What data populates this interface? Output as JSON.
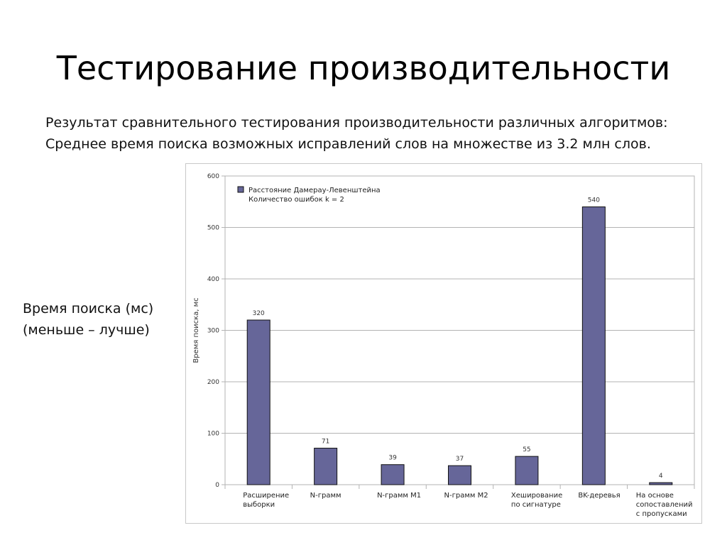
{
  "slide": {
    "title": "Тестирование производительности",
    "subtitle_line1": "Результат сравнительного тестирования производительности различных алгоритмов:",
    "subtitle_line2": "Среднее время поиска возможных исправлений слов на множестве из 3.2 млн слов.",
    "side_label_line1": "Время поиска (мс)",
    "side_label_line2": "(меньше – лучше)"
  },
  "chart_data": {
    "type": "bar",
    "categories": [
      [
        "Расширение",
        "выборки"
      ],
      [
        "N-грамм"
      ],
      [
        "N-грамм M1"
      ],
      [
        "N-грамм M2"
      ],
      [
        "Хеширование",
        "по сигнатуре"
      ],
      [
        "BK-деревья"
      ],
      [
        "На основе",
        "сопоставлений",
        "с пропусками"
      ]
    ],
    "series": [
      {
        "name": "Расстояние Дамерау-Левенштейна Количество ошибок k = 2",
        "legend_lines": [
          "Расстояние Дамерау-Левенштейна",
          "Количество ошибок k = 2"
        ],
        "values": [
          320,
          71,
          39,
          37,
          55,
          540,
          4
        ],
        "color": "#666699"
      }
    ],
    "ylabel": "Время поиска, мс",
    "ylim": [
      0,
      600
    ],
    "yticks": [
      0,
      100,
      200,
      300,
      400,
      500,
      600
    ],
    "grid": true,
    "legend_position": "top-left",
    "data_labels": true
  }
}
